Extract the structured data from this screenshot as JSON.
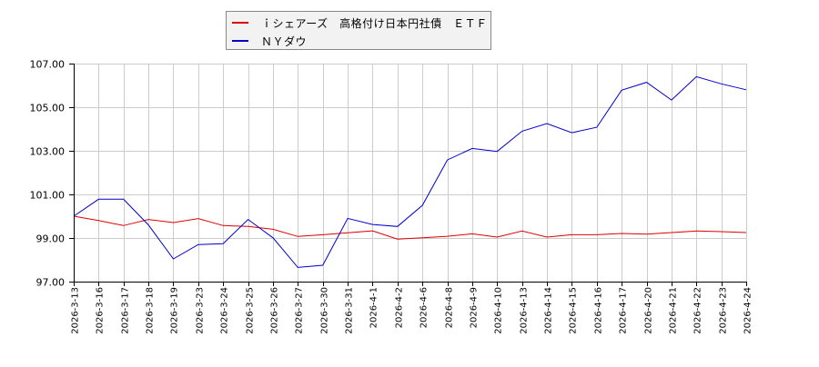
{
  "chart_data": {
    "type": "line",
    "title": "",
    "xlabel": "",
    "ylabel": "",
    "ylim": [
      97.0,
      107.0
    ],
    "yticks": [
      "97.00",
      "99.00",
      "101.00",
      "103.00",
      "105.00",
      "107.00"
    ],
    "grid": true,
    "legend_position": "top-center",
    "categories": [
      "2026-3-13",
      "2026-3-16",
      "2026-3-17",
      "2026-3-18",
      "2026-3-19",
      "2026-3-23",
      "2026-3-24",
      "2026-3-25",
      "2026-3-26",
      "2026-3-27",
      "2026-3-30",
      "2026-3-31",
      "2026-4-1",
      "2026-4-2",
      "2026-4-6",
      "2026-4-8",
      "2026-4-9",
      "2026-4-10",
      "2026-4-13",
      "2026-4-14",
      "2026-4-15",
      "2026-4-16",
      "2026-4-17",
      "2026-4-20",
      "2026-4-21",
      "2026-4-22",
      "2026-4-23",
      "2026-4-24"
    ],
    "series": [
      {
        "name": "ｉシェアーズ　高格付け日本円社債　ＥＴＦ",
        "color": "#dd0000",
        "values": [
          100.0,
          99.8,
          99.57,
          99.85,
          99.71,
          99.89,
          99.57,
          99.53,
          99.4,
          99.07,
          99.15,
          99.24,
          99.33,
          98.95,
          99.01,
          99.08,
          99.19,
          99.04,
          99.32,
          99.04,
          99.15,
          99.15,
          99.21,
          99.18,
          99.25,
          99.32,
          99.29,
          99.25
        ]
      },
      {
        "name": "ＮＹダウ",
        "color": "#0000cc",
        "values": [
          100.0,
          100.78,
          100.78,
          99.6,
          98.04,
          98.7,
          98.74,
          99.85,
          99.01,
          97.65,
          97.75,
          99.9,
          99.62,
          99.53,
          100.5,
          102.58,
          103.11,
          102.97,
          103.9,
          104.25,
          103.83,
          104.08,
          105.78,
          106.14,
          105.33,
          106.4,
          106.07,
          105.8
        ]
      }
    ]
  },
  "legend": {
    "items": [
      {
        "label": "ｉシェアーズ　高格付け日本円社債　ＥＴＦ",
        "color": "#dd0000"
      },
      {
        "label": "ＮＹダウ",
        "color": "#0000cc"
      }
    ]
  }
}
